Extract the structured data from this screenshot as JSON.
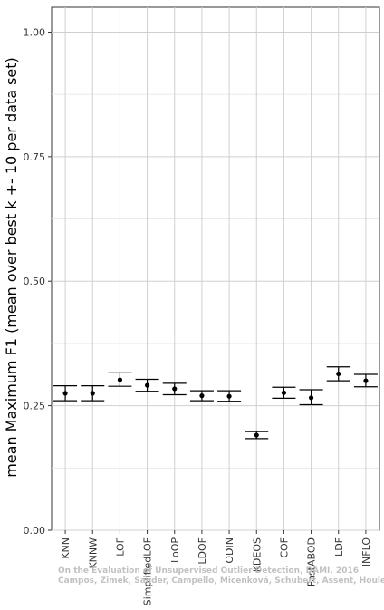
{
  "chart_data": {
    "type": "scatter",
    "style": "mean-with-error-bars",
    "ylabel": "mean Maximum F1 (mean over best k +- 10 per data set)",
    "xlabel": "",
    "ylim": [
      0,
      1.05
    ],
    "yticks": [
      "0.00",
      "0.25",
      "0.50",
      "0.75",
      "1.00"
    ],
    "ytick_values": [
      0,
      0.25,
      0.5,
      0.75,
      1.0
    ],
    "grid": true,
    "categories": [
      "KNN",
      "KNNW",
      "LOF",
      "SimplifiedLOF",
      "LoOP",
      "LDOF",
      "ODIN",
      "KDEOS",
      "COF",
      "FastABOD",
      "LDF",
      "INFLO"
    ],
    "values": [
      0.275,
      0.275,
      0.302,
      0.291,
      0.284,
      0.27,
      0.269,
      0.191,
      0.276,
      0.266,
      0.314,
      0.3
    ],
    "lower": [
      0.26,
      0.26,
      0.289,
      0.279,
      0.272,
      0.26,
      0.259,
      0.184,
      0.265,
      0.252,
      0.3,
      0.288
    ],
    "upper": [
      0.29,
      0.29,
      0.316,
      0.303,
      0.295,
      0.28,
      0.28,
      0.198,
      0.287,
      0.282,
      0.328,
      0.313
    ]
  },
  "watermark": {
    "line1": "On the Evaluation of Unsupervised Outlier Detection, DAMI, 2016",
    "line2": "Campos, Zimek, Sander, Campello, Micenková, Schubert, Assent, Houle"
  }
}
